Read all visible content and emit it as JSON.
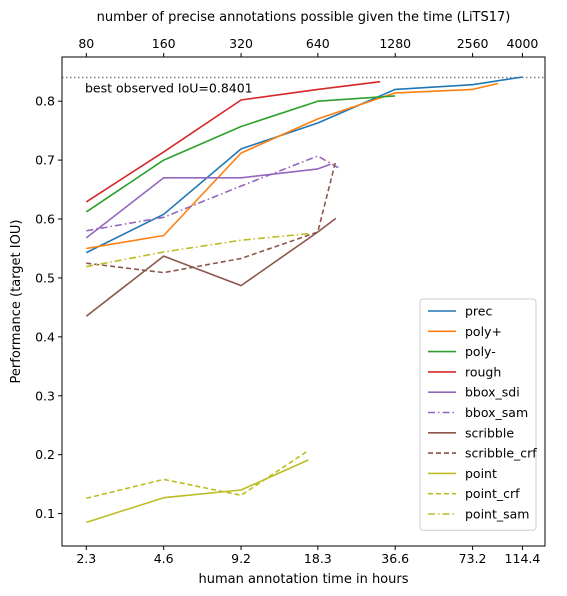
{
  "chart_data": {
    "type": "line",
    "xscale": "log2",
    "xlabel": "human annotation time in hours",
    "ylabel": "Performance (target IOU)",
    "top_xlabel": "number of precise annotations possible given the time (LiTS17)",
    "xlim": [
      1.85,
      140
    ],
    "ylim": [
      0.045,
      0.875
    ],
    "x_ticks": [
      2.3,
      4.6,
      9.2,
      18.3,
      36.6,
      73.2,
      114.4
    ],
    "x_tick_labels": [
      "2.3",
      "4.6",
      "9.2",
      "18.3",
      "36.6",
      "73.2",
      "114.4"
    ],
    "top_ticks": [
      2.3,
      4.6,
      9.2,
      18.3,
      36.6,
      73.2,
      114.4
    ],
    "top_tick_labels": [
      "80",
      "160",
      "320",
      "640",
      "1280",
      "2560",
      "4000"
    ],
    "y_ticks": [
      0.1,
      0.2,
      0.3,
      0.4,
      0.5,
      0.6,
      0.7,
      0.8
    ],
    "y_tick_labels": [
      "0.1",
      "0.2",
      "0.3",
      "0.4",
      "0.5",
      "0.6",
      "0.7",
      "0.8"
    ],
    "reference_line": {
      "y": 0.8401,
      "style": "dotted",
      "color": "#808080",
      "label": "best observed IoU=0.8401"
    },
    "legend_position": "lower-right",
    "grid": false,
    "series": [
      {
        "name": "prec",
        "color": "#1f77b4",
        "dash": "solid",
        "x": [
          2.3,
          4.6,
          9.2,
          18.3,
          36.6,
          73.2,
          114.4
        ],
        "y": [
          0.543,
          0.608,
          0.719,
          0.763,
          0.82,
          0.828,
          0.841
        ]
      },
      {
        "name": "poly+",
        "color": "#ff7f0e",
        "dash": "solid",
        "x": [
          2.3,
          4.6,
          9.2,
          18.3,
          36.6,
          73.2,
          92
        ],
        "y": [
          0.55,
          0.572,
          0.712,
          0.77,
          0.814,
          0.82,
          0.83
        ]
      },
      {
        "name": "poly-",
        "color": "#2ca02c",
        "dash": "solid",
        "x": [
          2.3,
          4.6,
          9.2,
          18.3,
          36.6
        ],
        "y": [
          0.612,
          0.7,
          0.757,
          0.8,
          0.809
        ]
      },
      {
        "name": "rough",
        "color": "#d62728",
        "dash": "solid",
        "x": [
          2.3,
          4.6,
          9.2,
          18.3,
          32
        ],
        "y": [
          0.629,
          0.714,
          0.802,
          0.82,
          0.833
        ]
      },
      {
        "name": "bbox_sdi",
        "color": "#9467bd",
        "dash": "solid",
        "x": [
          2.3,
          4.6,
          9.2,
          18.3,
          20.5
        ],
        "y": [
          0.568,
          0.67,
          0.67,
          0.685,
          0.693
        ]
      },
      {
        "name": "bbox_sam",
        "color": "#9467bd",
        "dash": "dashdot",
        "x": [
          2.3,
          4.6,
          9.2,
          18.3,
          22
        ],
        "y": [
          0.58,
          0.603,
          0.656,
          0.707,
          0.687
        ]
      },
      {
        "name": "scribble",
        "color": "#8c564b",
        "dash": "solid",
        "x": [
          2.3,
          4.6,
          9.2,
          18.3,
          21.5
        ],
        "y": [
          0.435,
          0.537,
          0.487,
          0.578,
          0.601
        ]
      },
      {
        "name": "scribble_crf",
        "color": "#8c564b",
        "dash": "dashed",
        "x": [
          2.3,
          4.6,
          9.2,
          18.3,
          21.5
        ],
        "y": [
          0.525,
          0.509,
          0.533,
          0.578,
          0.699
        ]
      },
      {
        "name": "point",
        "color": "#bcbd22",
        "dash": "solid",
        "x": [
          2.3,
          4.6,
          9.2,
          16.8
        ],
        "y": [
          0.085,
          0.127,
          0.14,
          0.191
        ]
      },
      {
        "name": "point_crf",
        "color": "#bcbd22",
        "dash": "dashed",
        "x": [
          2.3,
          4.6,
          9.2,
          16.8
        ],
        "y": [
          0.126,
          0.158,
          0.131,
          0.207
        ]
      },
      {
        "name": "point_sam",
        "color": "#bcbd22",
        "dash": "dashdot",
        "x": [
          2.3,
          4.6,
          9.2,
          16.8
        ],
        "y": [
          0.519,
          0.544,
          0.564,
          0.575
        ]
      }
    ]
  }
}
